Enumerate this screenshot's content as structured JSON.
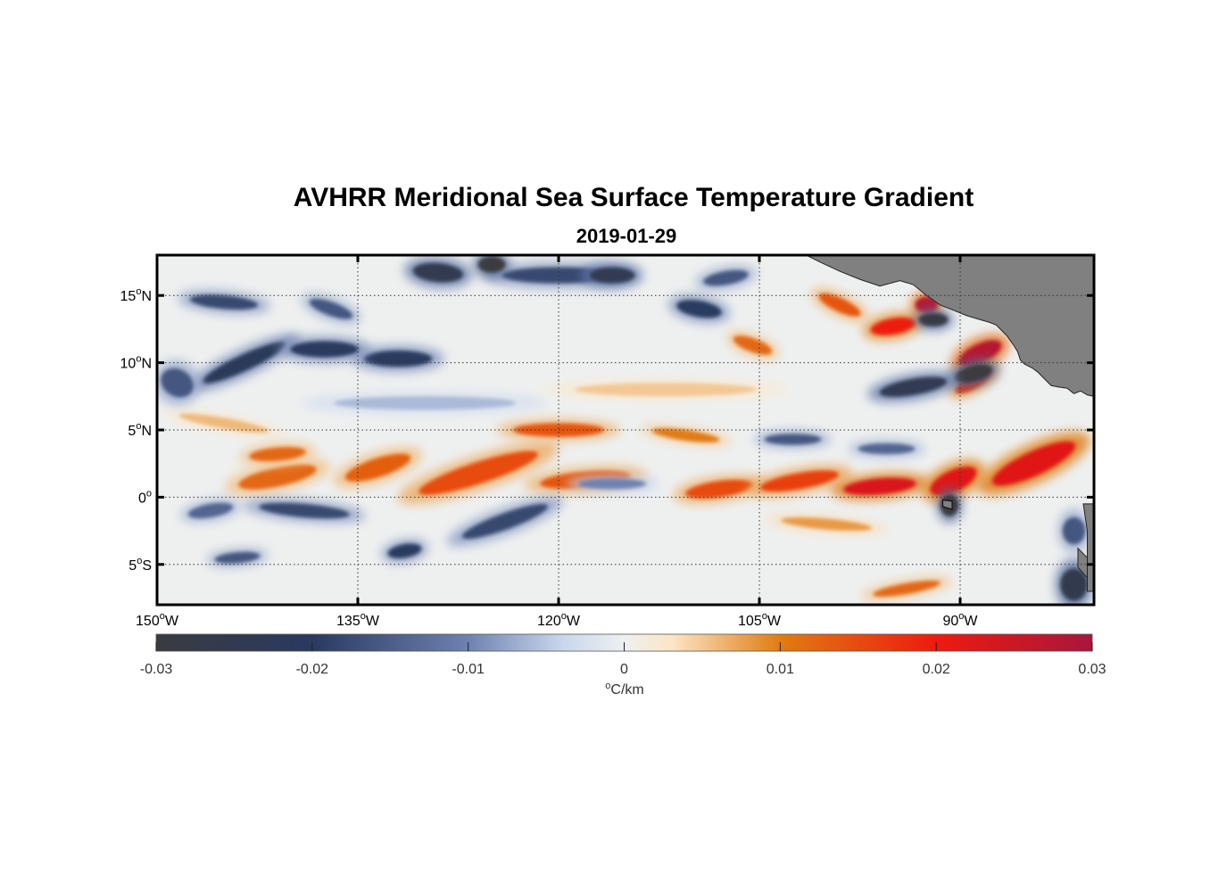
{
  "title": "AVHRR Meridional Sea Surface Temperature Gradient",
  "subtitle": "2019-01-29",
  "map": {
    "lon_range": [
      -150,
      -80
    ],
    "lat_range": [
      -8,
      18
    ],
    "grid": true,
    "colors": {
      "land": "#808080",
      "frame": "#000000",
      "grid": "#333333"
    },
    "lat_ticks": [
      {
        "lat": 15,
        "num": "15",
        "sup": "o",
        "hem": "N"
      },
      {
        "lat": 10,
        "num": "10",
        "sup": "o",
        "hem": "N"
      },
      {
        "lat": 5,
        "num": "5",
        "sup": "o",
        "hem": "N"
      },
      {
        "lat": 0,
        "num": "0",
        "sup": "o",
        "hem": ""
      },
      {
        "lat": -5,
        "num": "5",
        "sup": "o",
        "hem": "S"
      }
    ],
    "lon_ticks": [
      {
        "lon": -150,
        "num": "150",
        "sup": "o",
        "hem": "W"
      },
      {
        "lon": -135,
        "num": "135",
        "sup": "o",
        "hem": "W"
      },
      {
        "lon": -120,
        "num": "120",
        "sup": "o",
        "hem": "W"
      },
      {
        "lon": -105,
        "num": "105",
        "sup": "o",
        "hem": "W"
      },
      {
        "lon": -90,
        "num": "90",
        "sup": "o",
        "hem": "W"
      }
    ],
    "features": [
      {
        "lon": -141,
        "lat": 1.5,
        "sign": 1,
        "mag": 0.012,
        "dlon": 3.5,
        "dlat": 0.7,
        "angle": -12
      },
      {
        "lon": -133.5,
        "lat": 2.2,
        "sign": 1,
        "mag": 0.013,
        "dlon": 3,
        "dlat": 0.7,
        "angle": -18
      },
      {
        "lon": -126,
        "lat": 1.8,
        "sign": 1,
        "mag": 0.015,
        "dlon": 5.5,
        "dlat": 0.8,
        "angle": -18
      },
      {
        "lon": -120,
        "lat": 5,
        "sign": 1,
        "mag": 0.014,
        "dlon": 4,
        "dlat": 0.5,
        "angle": 0
      },
      {
        "lon": -118,
        "lat": 1.3,
        "sign": 1,
        "mag": 0.014,
        "dlon": 4,
        "dlat": 0.6,
        "angle": -5
      },
      {
        "lon": -110.5,
        "lat": 4.6,
        "sign": 1,
        "mag": 0.01,
        "dlon": 3,
        "dlat": 0.4,
        "angle": 8
      },
      {
        "lon": -108,
        "lat": 0.6,
        "sign": 1,
        "mag": 0.015,
        "dlon": 3,
        "dlat": 0.6,
        "angle": -8
      },
      {
        "lon": -102,
        "lat": 1.2,
        "sign": 1,
        "mag": 0.016,
        "dlon": 3.5,
        "dlat": 0.6,
        "angle": -10
      },
      {
        "lon": -96,
        "lat": 0.8,
        "sign": 1,
        "mag": 0.023,
        "dlon": 3.2,
        "dlat": 0.6,
        "angle": -5
      },
      {
        "lon": -90.5,
        "lat": 1.2,
        "sign": 1,
        "mag": 0.022,
        "dlon": 2.2,
        "dlat": 0.8,
        "angle": -25
      },
      {
        "lon": -84.5,
        "lat": 2.5,
        "sign": 1,
        "mag": 0.022,
        "dlon": 4,
        "dlat": 0.9,
        "angle": -25
      },
      {
        "lon": -95,
        "lat": 12.7,
        "sign": 1,
        "mag": 0.02,
        "dlon": 2,
        "dlat": 0.6,
        "angle": -10
      },
      {
        "lon": -92.5,
        "lat": 14.3,
        "sign": 1,
        "mag": 0.028,
        "dlon": 1,
        "dlat": 0.6,
        "angle": 0
      },
      {
        "lon": -88.5,
        "lat": 10.7,
        "sign": 1,
        "mag": 0.028,
        "dlon": 2,
        "dlat": 0.7,
        "angle": -25
      },
      {
        "lon": -89,
        "lat": 8.6,
        "sign": 1,
        "mag": 0.018,
        "dlon": 1.8,
        "dlat": 0.5,
        "angle": -30
      },
      {
        "lon": -105.5,
        "lat": 11.3,
        "sign": 1,
        "mag": 0.012,
        "dlon": 1.8,
        "dlat": 0.5,
        "angle": 20
      },
      {
        "lon": -99,
        "lat": 14.3,
        "sign": 1,
        "mag": 0.014,
        "dlon": 2,
        "dlat": 0.5,
        "angle": 25
      },
      {
        "lon": -120,
        "lat": 16.5,
        "sign": -1,
        "mag": 0.018,
        "dlon": 5,
        "dlat": 0.6,
        "angle": 0
      },
      {
        "lon": -129,
        "lat": 16.7,
        "sign": -1,
        "mag": 0.025,
        "dlon": 2.2,
        "dlat": 0.7,
        "angle": 5
      },
      {
        "lon": -125,
        "lat": 17.3,
        "sign": -1,
        "mag": 0.03,
        "dlon": 1.2,
        "dlat": 0.6,
        "angle": 0
      },
      {
        "lon": -116,
        "lat": 16.5,
        "sign": -1,
        "mag": 0.024,
        "dlon": 2,
        "dlat": 0.6,
        "angle": 0
      },
      {
        "lon": -132,
        "lat": 10.3,
        "sign": -1,
        "mag": 0.02,
        "dlon": 3,
        "dlat": 0.6,
        "angle": 0
      },
      {
        "lon": -143.5,
        "lat": 10,
        "sign": -1,
        "mag": 0.022,
        "dlon": 4,
        "dlat": 0.6,
        "angle": -25
      },
      {
        "lon": -137.5,
        "lat": 11,
        "sign": -1,
        "mag": 0.02,
        "dlon": 3,
        "dlat": 0.6,
        "angle": 0
      },
      {
        "lon": -145,
        "lat": 14.5,
        "sign": -1,
        "mag": 0.018,
        "dlon": 3,
        "dlat": 0.5,
        "angle": 5
      },
      {
        "lon": -137,
        "lat": 14,
        "sign": -1,
        "mag": 0.016,
        "dlon": 2,
        "dlat": 0.5,
        "angle": 20
      },
      {
        "lon": -109.5,
        "lat": 14,
        "sign": -1,
        "mag": 0.02,
        "dlon": 2,
        "dlat": 0.6,
        "angle": 10
      },
      {
        "lon": -107.5,
        "lat": 16.3,
        "sign": -1,
        "mag": 0.016,
        "dlon": 2,
        "dlat": 0.5,
        "angle": -10
      },
      {
        "lon": -89,
        "lat": 9.2,
        "sign": -1,
        "mag": 0.03,
        "dlon": 1.7,
        "dlat": 0.6,
        "angle": -15
      },
      {
        "lon": -93.5,
        "lat": 8.2,
        "sign": -1,
        "mag": 0.024,
        "dlon": 3,
        "dlat": 0.6,
        "angle": -10
      },
      {
        "lon": -92,
        "lat": 13.2,
        "sign": -1,
        "mag": 0.028,
        "dlon": 1.3,
        "dlat": 0.5,
        "angle": 0
      },
      {
        "lon": -102.5,
        "lat": 4.3,
        "sign": -1,
        "mag": 0.016,
        "dlon": 2.5,
        "dlat": 0.4,
        "angle": 0
      },
      {
        "lon": -95.5,
        "lat": 3.6,
        "sign": -1,
        "mag": 0.014,
        "dlon": 2.5,
        "dlat": 0.4,
        "angle": 0
      },
      {
        "lon": -139,
        "lat": -1,
        "sign": -1,
        "mag": 0.018,
        "dlon": 4,
        "dlat": 0.5,
        "angle": 5
      },
      {
        "lon": -124,
        "lat": -1.8,
        "sign": -1,
        "mag": 0.018,
        "dlon": 4,
        "dlat": 0.6,
        "angle": -20
      },
      {
        "lon": -146,
        "lat": -1,
        "sign": -1,
        "mag": 0.014,
        "dlon": 2,
        "dlat": 0.5,
        "angle": -10
      },
      {
        "lon": -131.5,
        "lat": -4,
        "sign": -1,
        "mag": 0.02,
        "dlon": 1.5,
        "dlat": 0.5,
        "angle": -10
      },
      {
        "lon": -144,
        "lat": -4.5,
        "sign": -1,
        "mag": 0.016,
        "dlon": 2,
        "dlat": 0.4,
        "angle": -5
      },
      {
        "lon": -90.8,
        "lat": -0.6,
        "sign": -1,
        "mag": 0.03,
        "dlon": 0.8,
        "dlat": 0.8,
        "angle": 0
      },
      {
        "lon": -81.5,
        "lat": -6.5,
        "sign": -1,
        "mag": 0.026,
        "dlon": 1.2,
        "dlat": 1.2,
        "angle": 0
      },
      {
        "lon": -81.5,
        "lat": -2.5,
        "sign": -1,
        "mag": 0.016,
        "dlon": 1,
        "dlat": 1,
        "angle": 0
      },
      {
        "lon": -116,
        "lat": 1,
        "sign": -1,
        "mag": 0.01,
        "dlon": 3,
        "dlat": 0.4,
        "angle": 0
      },
      {
        "lon": -100,
        "lat": -2,
        "sign": 1,
        "mag": 0.008,
        "dlon": 4,
        "dlat": 0.4,
        "angle": 5
      },
      {
        "lon": -94,
        "lat": -6.8,
        "sign": 1,
        "mag": 0.012,
        "dlon": 3,
        "dlat": 0.4,
        "angle": -10
      },
      {
        "lon": -130,
        "lat": 7,
        "sign": -1,
        "mag": 0.006,
        "dlon": 8,
        "dlat": 0.5,
        "angle": 0
      },
      {
        "lon": -112,
        "lat": 8,
        "sign": 1,
        "mag": 0.005,
        "dlon": 8,
        "dlat": 0.5,
        "angle": 0
      },
      {
        "lon": -145,
        "lat": 5.5,
        "sign": 1,
        "mag": 0.006,
        "dlon": 4,
        "dlat": 0.4,
        "angle": 10
      },
      {
        "lon": -141,
        "lat": 3.2,
        "sign": 1,
        "mag": 0.012,
        "dlon": 2.5,
        "dlat": 0.5,
        "angle": -5
      },
      {
        "lon": -148.5,
        "lat": 8.5,
        "sign": -1,
        "mag": 0.016,
        "dlon": 1.5,
        "dlat": 1,
        "angle": 30
      }
    ],
    "land": [
      [
        [
          -101.5,
          18
        ],
        [
          -100.5,
          17.5
        ],
        [
          -99,
          16.8
        ],
        [
          -97.5,
          16.2
        ],
        [
          -96,
          15.7
        ],
        [
          -94.5,
          16.1
        ],
        [
          -93.5,
          15.8
        ],
        [
          -92.5,
          15
        ],
        [
          -91.5,
          14.3
        ],
        [
          -90.5,
          13.9
        ],
        [
          -89.5,
          13.5
        ],
        [
          -88.5,
          13.2
        ],
        [
          -87.8,
          13.0
        ],
        [
          -87.3,
          12.8
        ],
        [
          -86.5,
          12.0
        ],
        [
          -86,
          11.3
        ],
        [
          -85.7,
          10.8
        ],
        [
          -85.5,
          10.2
        ],
        [
          -85.2,
          9.9
        ],
        [
          -84.6,
          9.6
        ],
        [
          -84.2,
          9.3
        ],
        [
          -83.6,
          8.7
        ],
        [
          -83.2,
          8.3
        ],
        [
          -82.7,
          8.2
        ],
        [
          -82,
          8.1
        ],
        [
          -81.5,
          7.7
        ],
        [
          -81,
          7.9
        ],
        [
          -80.5,
          7.6
        ],
        [
          -80,
          7.5
        ],
        [
          -80,
          18
        ]
      ],
      [
        [
          -80,
          18
        ],
        [
          -80,
          18
        ]
      ],
      [
        [
          -80.8,
          -0.5
        ],
        [
          -80.5,
          -2.5
        ],
        [
          -80.5,
          -7
        ],
        [
          -80,
          -7
        ],
        [
          -80,
          -0.5
        ]
      ],
      [
        [
          -81.2,
          -3.8
        ],
        [
          -80.5,
          -4.5
        ],
        [
          -80.5,
          -6
        ],
        [
          -81.2,
          -5.2
        ]
      ]
    ],
    "galapagos": [
      [
        -91.3,
        -0.2
      ],
      [
        -90.6,
        -0.3
      ],
      [
        -90.6,
        -0.9
      ],
      [
        -91.3,
        -0.7
      ]
    ]
  },
  "colorbar": {
    "unit_sup": "o",
    "unit": "C/km",
    "ticks": [
      {
        "value": -0.03,
        "label": "-0.03"
      },
      {
        "value": -0.02,
        "label": "-0.02"
      },
      {
        "value": -0.01,
        "label": "-0.01"
      },
      {
        "value": 0,
        "label": "0"
      },
      {
        "value": 0.01,
        "label": "0.01"
      },
      {
        "value": 0.02,
        "label": "0.02"
      },
      {
        "value": 0.03,
        "label": "0.03"
      }
    ],
    "range": [
      -0.03,
      0.03
    ],
    "stops": [
      {
        "value": -0.03,
        "color": "#3a3b40"
      },
      {
        "value": -0.02,
        "color": "#293a60"
      },
      {
        "value": -0.01,
        "color": "#6e82b0"
      },
      {
        "value": -0.004,
        "color": "#c8d6ec"
      },
      {
        "value": 0,
        "color": "#eef0f0"
      },
      {
        "value": 0.003,
        "color": "#fbe6c8"
      },
      {
        "value": 0.01,
        "color": "#e07c12"
      },
      {
        "value": 0.02,
        "color": "#ee1a10"
      },
      {
        "value": 0.03,
        "color": "#a8163c"
      }
    ]
  }
}
